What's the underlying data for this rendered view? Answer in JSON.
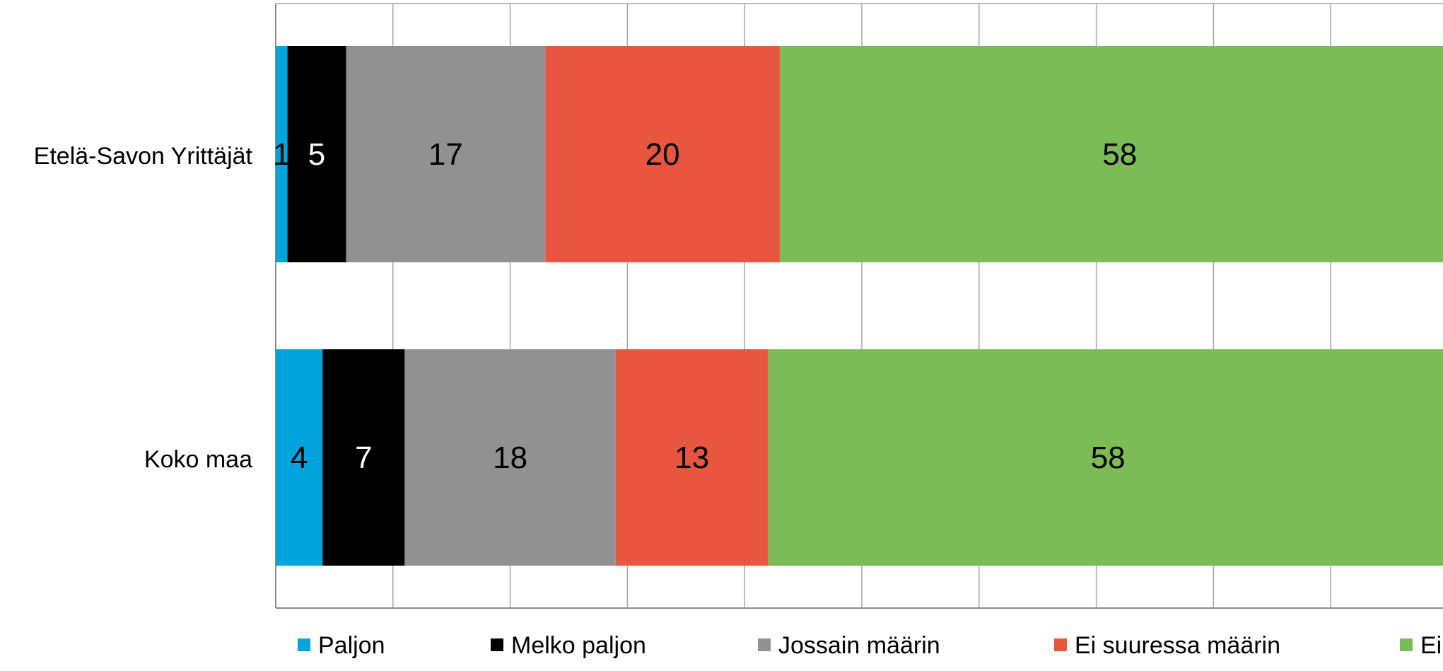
{
  "chart_data": {
    "type": "bar",
    "orientation": "horizontal",
    "stacked": true,
    "categories": [
      "Etelä-Savon Yrittäjät",
      "Koko maa"
    ],
    "series": [
      {
        "name": "Paljon",
        "values": [
          1,
          4
        ],
        "color": "#00A3DC"
      },
      {
        "name": "Melko paljon",
        "values": [
          5,
          7
        ],
        "color": "#000000"
      },
      {
        "name": "Jossain määrin",
        "values": [
          17,
          18
        ],
        "color": "#919191"
      },
      {
        "name": "Ei suuressa määrin",
        "values": [
          20,
          13
        ],
        "color": "#E8563F"
      },
      {
        "name": "Ei",
        "values": [
          58,
          58
        ],
        "color": "#7BBC56"
      }
    ],
    "data_label_colors": [
      "#000000",
      "#ffffff",
      "#000000",
      "#000000",
      "#000000"
    ],
    "xlim": [
      0,
      100
    ],
    "grid": true,
    "legend_position": "bottom",
    "title": "",
    "xlabel": "",
    "ylabel": ""
  }
}
